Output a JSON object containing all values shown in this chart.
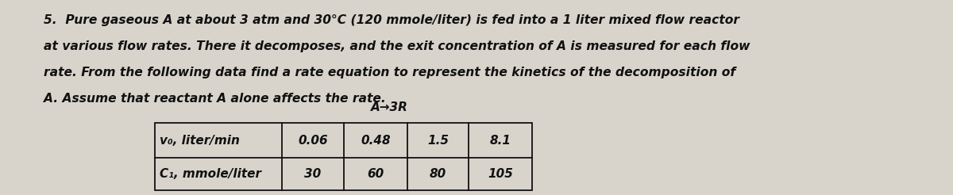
{
  "background_color": "#d8d4cc",
  "paragraph_text": [
    "5.  Pure gaseous A at about 3 atm and 30°C (120 mmole/liter) is fed into a 1 liter mixed flow reactor",
    "at various flow rates. There it decomposes, and the exit concentration of A is measured for each flow",
    "rate. From the following data find a rate equation to represent the kinetics of the decomposition of",
    "A. Assume that reactant A alone affects the rate."
  ],
  "reaction_label": "A→3R",
  "row1_label": "v₀, liter/min",
  "row2_label": "C₁, mmole/liter",
  "table_data_row1": [
    "0.06",
    "0.48",
    "1.5",
    "8.1"
  ],
  "table_data_row2": [
    "30",
    "60",
    "80",
    "105"
  ],
  "text_color": "#111111",
  "font_size_body": 11.2,
  "font_size_table": 11.0,
  "figure_width": 12.0,
  "figure_height": 2.46
}
